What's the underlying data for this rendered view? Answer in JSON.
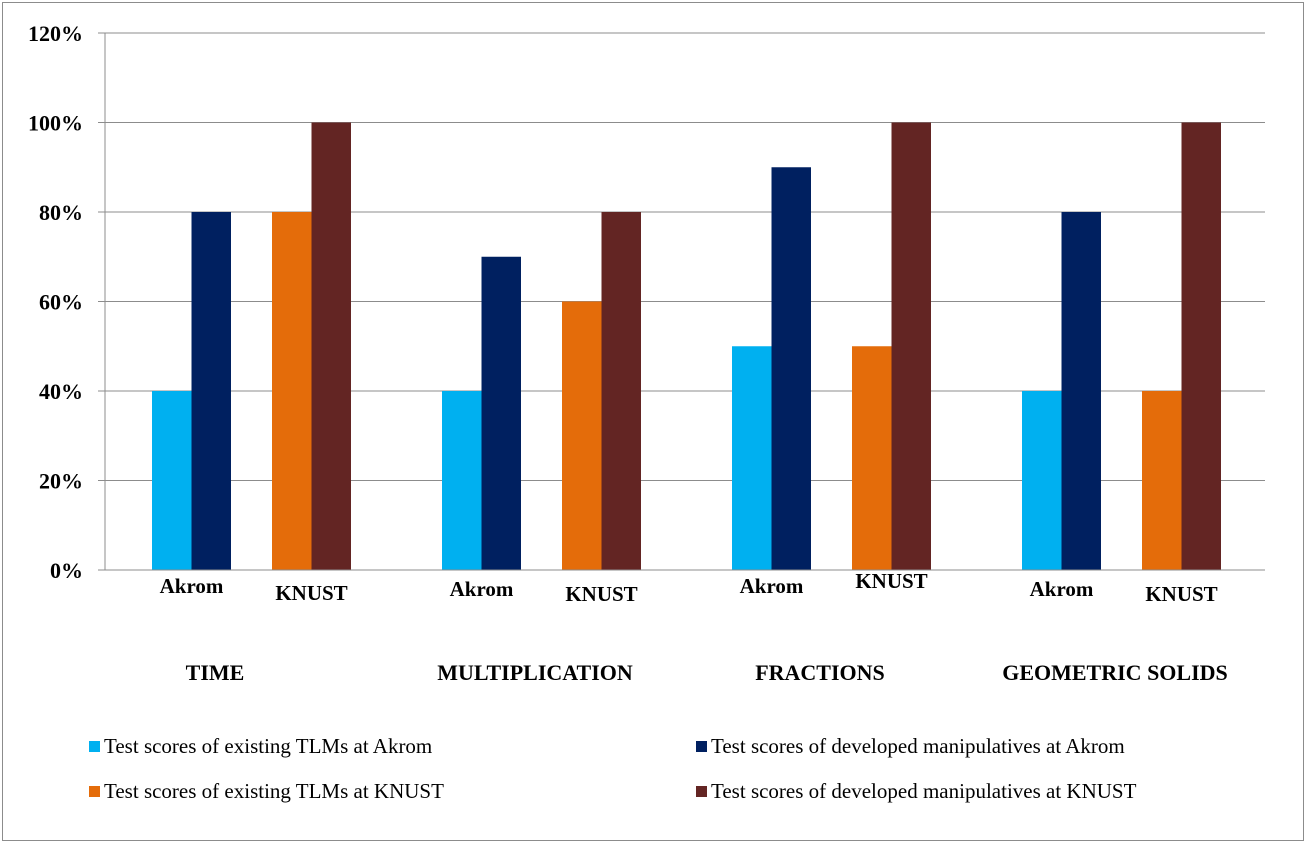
{
  "chart_data": {
    "type": "bar",
    "title": "",
    "xlabel": "",
    "ylabel": "",
    "ylim": [
      0,
      1.2
    ],
    "y_ticks": [
      0,
      0.2,
      0.4,
      0.6,
      0.8,
      1.0,
      1.2
    ],
    "y_tick_labels": [
      "0%",
      "20%",
      "40%",
      "60%",
      "80%",
      "100%",
      "120%"
    ],
    "grid": true,
    "legend_position": "bottom",
    "categories": [
      "TIME",
      "MULTIPLICATION",
      "FRACTIONS",
      "GEOMETRIC SOLIDS"
    ],
    "sublabels": [
      [
        "Akrom",
        "KNUST"
      ],
      [
        "Akrom",
        "KNUST"
      ],
      [
        "Akrom",
        "KNUST"
      ],
      [
        "Akrom",
        "KNUST"
      ]
    ],
    "series": [
      {
        "name": "Test scores of existing TLMs at Akrom",
        "color": "#00b0f0",
        "values": [
          0.4,
          0.4,
          0.5,
          0.4
        ]
      },
      {
        "name": "Test scores of developed manipulatives at Akrom",
        "color": "#002060",
        "values": [
          0.8,
          0.7,
          0.9,
          0.8
        ]
      },
      {
        "name": "Test scores of existing TLMs at KNUST",
        "color": "#e46c0a",
        "values": [
          0.8,
          0.6,
          0.5,
          0.4
        ]
      },
      {
        "name": "Test scores of developed manipulatives at KNUST",
        "color": "#632523",
        "values": [
          1.0,
          0.8,
          1.0,
          1.0
        ]
      }
    ]
  }
}
